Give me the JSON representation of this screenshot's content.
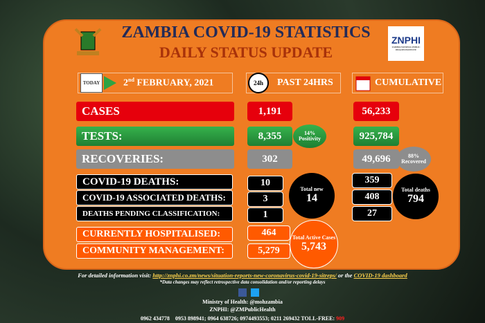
{
  "header": {
    "title": "ZAMBIA COVID-19 STATISTICS",
    "subtitle": "DAILY STATUS UPDATE",
    "logo": "ZNPHI",
    "logo_caption": "ZAMBIA NATIONAL PUBLIC HEALTH INSTITUTE"
  },
  "date": {
    "icon": "TODAY",
    "day": "2",
    "suffix": "nd",
    "rest": "FEBRUARY, 2021"
  },
  "columns": {
    "past_icon": "24h",
    "past": "PAST 24HRS",
    "cumulative": "CUMULATIVE"
  },
  "rows": [
    {
      "label": "CASES",
      "past": "1,191",
      "cumulative": "56,233"
    },
    {
      "label": "TESTS:",
      "past": "8,355",
      "cumulative": "925,784"
    },
    {
      "label": "RECOVERIES:",
      "past": "302",
      "cumulative": "49,696"
    },
    {
      "label": "COVID-19 DEATHS:",
      "past": "10",
      "cumulative": "359"
    },
    {
      "label": "COVID-19 ASSOCIATED DEATHS:",
      "past": "3",
      "cumulative": "408"
    },
    {
      "label": "DEATHS PENDING CLASSIFICATION:",
      "past": "1",
      "cumulative": "27"
    },
    {
      "label": "CURRENTLY HOSPITALISED:",
      "past": "464"
    },
    {
      "label": "COMMUNITY MANAGEMENT:",
      "past": "5,279"
    }
  ],
  "bubbles": {
    "positivity": {
      "value": "14%",
      "label": "Positivity"
    },
    "recovered": {
      "value": "88%",
      "label": "Recovered"
    },
    "total_new": {
      "label": "Total new",
      "value": "14"
    },
    "total_deaths": {
      "label": "Total deaths",
      "value": "794"
    },
    "active": {
      "label": "Total Active Cases",
      "value": "5,743"
    }
  },
  "footer": {
    "intro": "For detailed information visit:",
    "link": "http://znphi.co.zm/news/situation-reports-new-coronavirus-covid-19-sitreps/",
    "or": "or the",
    "dashboard": "COVID-19 dashboard",
    "note": "*Data changes may reflect retrospective data consolidation and/or reporting delays",
    "ministry": "Ministry of Health: @mohzambia",
    "znphi": "ZNPHI: @ZMPublicHealth",
    "phone1": "0962 434778",
    "phones": "0953 898941; 0964 638726; 0974493553; 0211 269432 TOLL-FREE:",
    "tollfree": "909"
  }
}
